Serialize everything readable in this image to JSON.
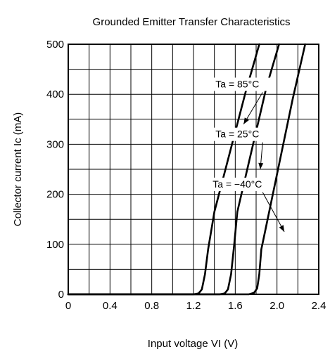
{
  "chart_data": {
    "type": "line",
    "title": "Grounded Emitter Transfer Characteristics",
    "xlabel": "Input voltage  VI (V)",
    "ylabel": "Collector current  Ic (mA)",
    "xlim": [
      0,
      2.4
    ],
    "ylim": [
      0,
      500
    ],
    "x_ticks": [
      0,
      0.4,
      0.8,
      1.2,
      1.6,
      2.0,
      2.4
    ],
    "x_tick_labels": [
      "0",
      "0.4",
      "0.8",
      "1.2",
      "1.6",
      "2.0",
      "2.4"
    ],
    "y_ticks": [
      0,
      100,
      200,
      300,
      400,
      500
    ],
    "y_tick_labels": [
      "0",
      "100",
      "200",
      "300",
      "400",
      "500"
    ],
    "grid": true,
    "x_minor_step": 0.2,
    "y_minor_step": 50,
    "series": [
      {
        "name": "Ta = 85°C",
        "x": [
          0,
          1.2,
          1.25,
          1.28,
          1.31,
          1.34,
          1.4,
          1.7,
          1.83
        ],
        "y": [
          0,
          0,
          2,
          10,
          40,
          90,
          165,
          405,
          500
        ]
      },
      {
        "name": "Ta = 25°C",
        "x": [
          0,
          1.45,
          1.5,
          1.53,
          1.56,
          1.59,
          1.62,
          1.9,
          2.02
        ],
        "y": [
          0,
          0,
          2,
          10,
          40,
          100,
          165,
          415,
          500
        ]
      },
      {
        "name": "Ta = −40°C",
        "x": [
          0,
          1.73,
          1.78,
          1.81,
          1.83,
          1.85,
          1.87,
          2.15,
          2.27
        ],
        "y": [
          0,
          0,
          3,
          12,
          40,
          90,
          110,
          390,
          500
        ]
      }
    ],
    "annotations": [
      {
        "text": "Ta = 85°C",
        "series": 0,
        "text_at": [
          1.62,
          415
        ],
        "arrow_to": [
          1.68,
          340
        ]
      },
      {
        "text": "Ta = 25°C",
        "series": 1,
        "text_at": [
          1.62,
          315
        ],
        "arrow_to": [
          1.84,
          250
        ]
      },
      {
        "text": "Ta = −40°C",
        "series": 2,
        "text_at": [
          1.62,
          215
        ],
        "arrow_to": [
          2.07,
          125
        ]
      }
    ]
  }
}
